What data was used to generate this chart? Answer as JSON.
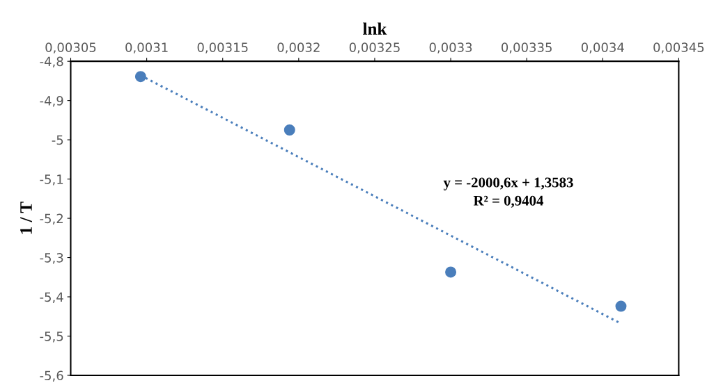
{
  "chart_data": {
    "type": "scatter",
    "xlabel": "lnk",
    "ylabel": "1 / T",
    "xlim": [
      0.00305,
      0.00345
    ],
    "xticks": [
      {
        "value": 0.00305,
        "label": "0,00305"
      },
      {
        "value": 0.0031,
        "label": "0,0031"
      },
      {
        "value": 0.00315,
        "label": "0,00315"
      },
      {
        "value": 0.0032,
        "label": "0,0032"
      },
      {
        "value": 0.00325,
        "label": "0,00325"
      },
      {
        "value": 0.0033,
        "label": "0,0033"
      },
      {
        "value": 0.00335,
        "label": "0,00335"
      },
      {
        "value": 0.0034,
        "label": "0,0034"
      },
      {
        "value": 0.00345,
        "label": "0,00345"
      }
    ],
    "ylim": [
      -5.6,
      -4.8
    ],
    "yticks": [
      {
        "value": -5.6,
        "label": "-5,6"
      },
      {
        "value": -5.5,
        "label": "-5,5"
      },
      {
        "value": -5.4,
        "label": "-5,4"
      },
      {
        "value": -5.3,
        "label": "-5,3"
      },
      {
        "value": -5.2,
        "label": "-5,2"
      },
      {
        "value": -5.1,
        "label": "-5,1"
      },
      {
        "value": -5.0,
        "label": "-5"
      },
      {
        "value": -4.9,
        "label": "-4,9"
      },
      {
        "value": -4.8,
        "label": "-4,8"
      }
    ],
    "grid": false,
    "legend": false,
    "series": [
      {
        "marker": "circle",
        "color": "#4a7ebb",
        "x": [
          0.003096,
          0.003194,
          0.0033,
          0.003412
        ],
        "values": [
          -4.839,
          -4.975,
          -5.337,
          -5.424
        ]
      },
      {
        "type": "line",
        "marker": "none",
        "color": "#4a7ebb",
        "line_style": "dotted",
        "x": [
          0.003096,
          0.003412
        ],
        "values": [
          -4.836,
          -5.468
        ]
      }
    ],
    "annotations": [
      "y = -2000,6x + 1,3583",
      "R² = 0,9404"
    ]
  }
}
